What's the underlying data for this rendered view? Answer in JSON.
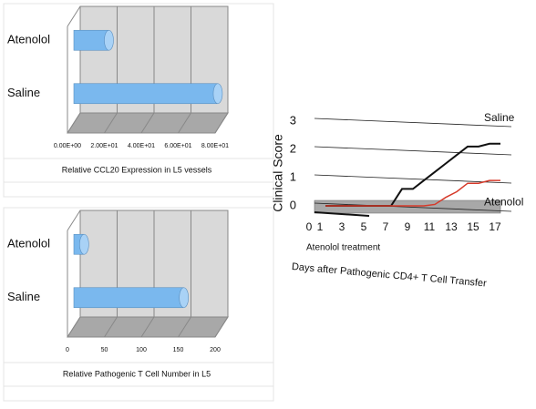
{
  "chart_data": [
    {
      "type": "hbar3d",
      "categories": [
        "Atenolol",
        "Saline"
      ],
      "values": [
        19,
        78
      ],
      "color": "#7ab8ee",
      "xlim": [
        0,
        80
      ],
      "xticks": [
        {
          "value": 0,
          "label": "0.00E+00"
        },
        {
          "value": 20,
          "label": "2.00E+01"
        },
        {
          "value": 40,
          "label": "4.00E+01"
        },
        {
          "value": 60,
          "label": "6.00E+01"
        },
        {
          "value": 80,
          "label": "8.00E+01"
        }
      ],
      "x_label": "Relative CCL20 Expression in L5 vessels",
      "grid": true
    },
    {
      "type": "hbar3d",
      "categories": [
        "Atenolol",
        "Saline"
      ],
      "values": [
        14,
        149
      ],
      "color": "#7ab8ee",
      "xlim": [
        0,
        200
      ],
      "xticks": [
        0,
        50,
        100,
        150,
        200
      ],
      "x_label": "Relative Pathogenic T Cell Number in L5",
      "grid": true
    },
    {
      "type": "line",
      "y_label": "Clinical Score",
      "x_label": "Days after Pathogenic CD4+ T Cell Transfer",
      "annotation": "Atenolol treatment",
      "treatment_range": [
        0,
        5
      ],
      "x": [
        1,
        2,
        3,
        4,
        5,
        6,
        7,
        8,
        9,
        10,
        11,
        12,
        13,
        14,
        15,
        16,
        17
      ],
      "series": [
        {
          "name": "Saline",
          "color": "#111111",
          "values": [
            0,
            0,
            0,
            0,
            0,
            0,
            0,
            0.6,
            0.6,
            0.9,
            1.2,
            1.5,
            1.8,
            2.1,
            2.1,
            2.2,
            2.2
          ]
        },
        {
          "name": "Atenolol",
          "color": "#d63a2a",
          "values": [
            0,
            0,
            0,
            0,
            0,
            0,
            0,
            0,
            0,
            0,
            0.05,
            0.3,
            0.5,
            0.8,
            0.8,
            0.9,
            0.9
          ]
        }
      ],
      "xlim": [
        0,
        17
      ],
      "xticks": [
        0,
        1,
        3,
        5,
        7,
        9,
        11,
        13,
        15,
        17
      ],
      "ylim": [
        0,
        3
      ],
      "yticks": [
        0,
        1,
        2,
        3
      ],
      "grid": true
    }
  ]
}
